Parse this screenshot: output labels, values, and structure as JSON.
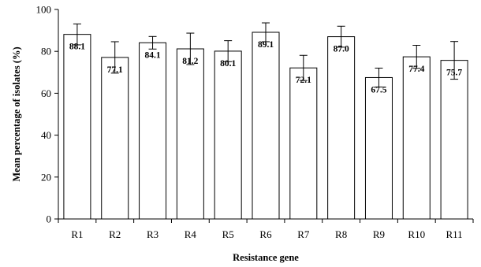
{
  "chart_data": {
    "type": "bar",
    "xlabel": "Resistance gene",
    "ylabel": "Mean percentage of isolates (%)",
    "ylim": [
      0,
      100
    ],
    "yticks": [
      0,
      20,
      40,
      60,
      80,
      100
    ],
    "categories": [
      "R1",
      "R2",
      "R3",
      "R4",
      "R5",
      "R6",
      "R7",
      "R8",
      "R9",
      "R10",
      "R11"
    ],
    "values": [
      88.1,
      77.1,
      84.1,
      81.2,
      80.1,
      89.1,
      72.1,
      87.0,
      67.5,
      77.4,
      75.7
    ],
    "value_labels": [
      "88.1",
      "77.1",
      "84.1",
      "81.2",
      "80.1",
      "89.1",
      "72.1",
      "87.0",
      "67.5",
      "77.4",
      "75.7"
    ],
    "error": [
      5.0,
      7.5,
      3.0,
      7.5,
      5.0,
      4.5,
      6.0,
      5.0,
      4.5,
      5.5,
      9.0
    ],
    "grid": false,
    "legend": "none"
  }
}
